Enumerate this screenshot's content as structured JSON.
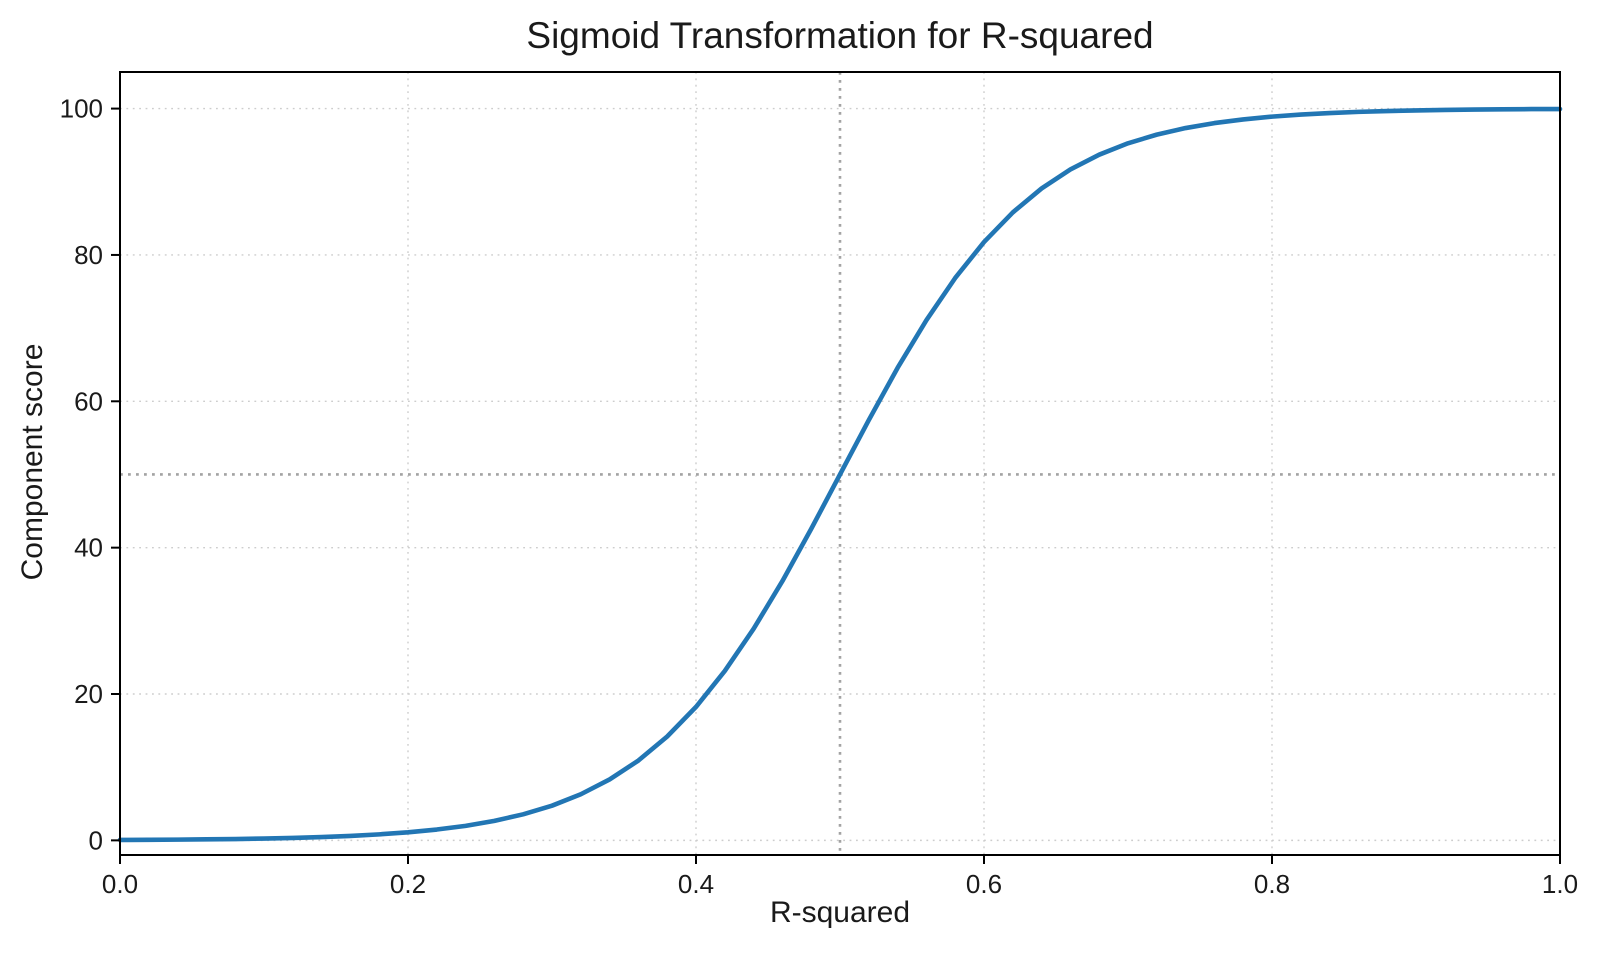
{
  "figure": {
    "background": "#ffffff"
  },
  "chart_data": {
    "type": "line",
    "title": "Sigmoid Transformation for R-squared",
    "xlabel": "R-squared",
    "ylabel": "Component score",
    "xlim": [
      0,
      1
    ],
    "ylim": [
      -2,
      105
    ],
    "grid": true,
    "grid_linestyle": "dotted",
    "legend": "none",
    "xticks": {
      "values": [
        0.0,
        0.2,
        0.4,
        0.6,
        0.8,
        1.0
      ],
      "labels": [
        "0.0",
        "0.2",
        "0.4",
        "0.6",
        "0.8",
        "1.0"
      ]
    },
    "yticks": {
      "values": [
        0,
        20,
        40,
        60,
        80,
        100
      ],
      "labels": [
        "0",
        "20",
        "40",
        "60",
        "80",
        "100"
      ]
    },
    "series": [
      {
        "name": "sigmoid-curve",
        "shape": "sigmoid, midpoint 0.5, steepness 15, scaled 0-100",
        "x": [
          0.0,
          0.02,
          0.04,
          0.06,
          0.08,
          0.1,
          0.12,
          0.14,
          0.16,
          0.18,
          0.2,
          0.22,
          0.24,
          0.26,
          0.28,
          0.3,
          0.32,
          0.34,
          0.36,
          0.38,
          0.4,
          0.42,
          0.44,
          0.46,
          0.48,
          0.5,
          0.52,
          0.54,
          0.56,
          0.58,
          0.6,
          0.62,
          0.64,
          0.66,
          0.68,
          0.7,
          0.72,
          0.74,
          0.76,
          0.78,
          0.8,
          0.82,
          0.84,
          0.86,
          0.88,
          0.9,
          0.92,
          0.94,
          0.96,
          0.98,
          1.0
        ],
        "y": [
          0.06,
          0.07,
          0.1,
          0.14,
          0.18,
          0.25,
          0.33,
          0.45,
          0.61,
          0.82,
          1.1,
          1.48,
          1.98,
          2.66,
          3.56,
          4.74,
          6.3,
          8.32,
          10.91,
          14.19,
          18.24,
          23.15,
          28.91,
          35.43,
          42.56,
          50.0,
          57.44,
          64.57,
          71.09,
          76.85,
          81.76,
          85.81,
          89.09,
          91.68,
          93.7,
          95.26,
          96.44,
          97.34,
          98.02,
          98.52,
          98.9,
          99.18,
          99.39,
          99.55,
          99.66,
          99.75,
          99.82,
          99.86,
          99.9,
          99.93,
          99.94
        ]
      }
    ],
    "reference_lines": [
      {
        "axis": "x",
        "value": 0.5,
        "style": "dotted"
      },
      {
        "axis": "y",
        "value": 50,
        "style": "dotted"
      }
    ],
    "colors": {
      "curve": "#2276b4",
      "grid": "#cdcdcd",
      "reference": "#a3a3a3",
      "spine": "#000000",
      "text": "#1a1a1a"
    }
  }
}
